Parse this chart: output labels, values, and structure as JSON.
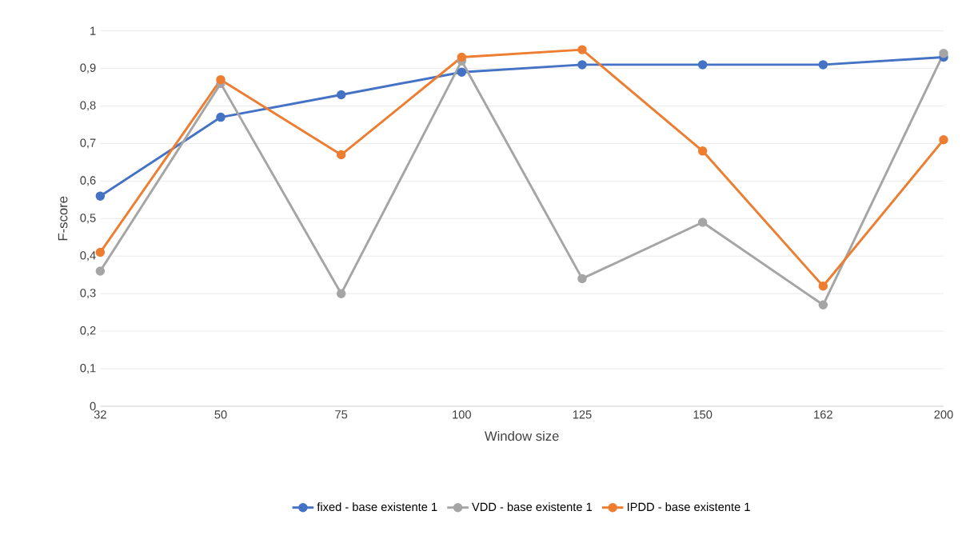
{
  "chart_data": {
    "type": "line",
    "xlabel": "Window size",
    "ylabel": "F-score",
    "categories": [
      "32",
      "50",
      "75",
      "100",
      "125",
      "150",
      "162",
      "200"
    ],
    "series": [
      {
        "name": "fixed - base existente 1",
        "color": "#4472c4",
        "values": [
          0.56,
          0.77,
          0.83,
          0.89,
          0.91,
          0.91,
          0.91,
          0.93
        ]
      },
      {
        "name": "VDD - base existente 1",
        "color": "#a5a5a5",
        "values": [
          0.36,
          0.86,
          0.3,
          0.92,
          0.34,
          0.49,
          0.27,
          0.94
        ]
      },
      {
        "name": "IPDD - base existente 1",
        "color": "#ed7d31",
        "values": [
          0.41,
          0.87,
          0.67,
          0.93,
          0.95,
          0.68,
          0.32,
          0.71
        ]
      }
    ],
    "ylim": [
      0,
      1
    ],
    "yticks": [
      0,
      {
        "value": 0.1,
        "label": "0,1"
      },
      {
        "value": 0.2,
        "label": "0,2"
      },
      {
        "value": 0.3,
        "label": "0,3"
      },
      {
        "value": 0.4,
        "label": "0,4"
      },
      {
        "value": 0.5,
        "label": "0,5"
      },
      {
        "value": 0.6,
        "label": "0,6"
      },
      {
        "value": 0.7,
        "label": "0,7"
      },
      {
        "value": 0.8,
        "label": "0,8"
      },
      {
        "value": 0.9,
        "label": "0,9"
      },
      1
    ],
    "grid": "y",
    "legend": "bottom",
    "marker": "circle",
    "line_style": "solid"
  }
}
